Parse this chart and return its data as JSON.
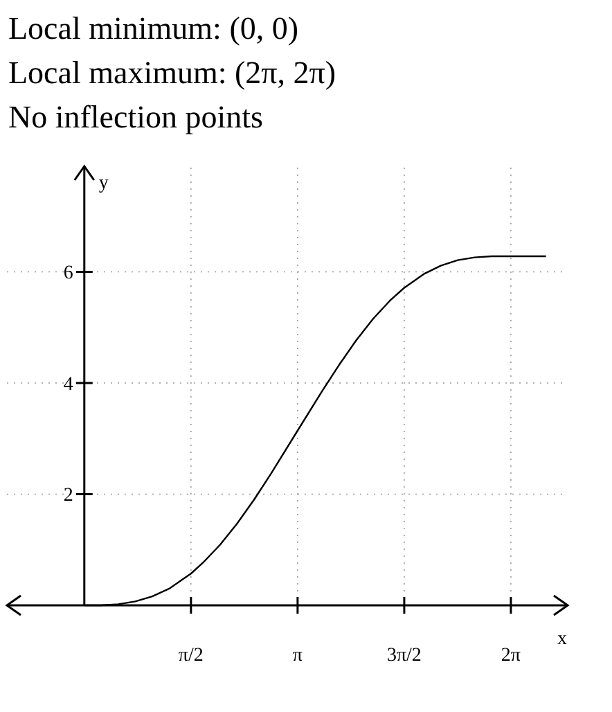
{
  "chart_data": {
    "type": "line",
    "annotations": [
      "Local minimum: (0, 0)",
      "Local maximum: (2π, 2π)",
      "No inflection points"
    ],
    "xlabel": "x",
    "ylabel": "y",
    "x": [
      0,
      0.25,
      0.5,
      0.75,
      1,
      1.25,
      1.57,
      1.75,
      2,
      2.25,
      2.5,
      2.75,
      3.14,
      3.5,
      3.75,
      4,
      4.25,
      4.5,
      4.71,
      5,
      5.25,
      5.5,
      5.75,
      6,
      6.28,
      6.8
    ],
    "series": [
      {
        "color": "#000000",
        "values": [
          0,
          0,
          0.02,
          0.07,
          0.16,
          0.3,
          0.57,
          0.77,
          1.09,
          1.47,
          1.9,
          2.37,
          3.14,
          3.85,
          4.32,
          4.76,
          5.15,
          5.48,
          5.71,
          5.96,
          6.11,
          6.21,
          6.26,
          6.28,
          6.28,
          6.28
        ]
      }
    ],
    "xlim": [
      -1.14,
      7.12
    ],
    "ylim": [
      0,
      7.9
    ],
    "xticks": [
      {
        "value": 1.5708,
        "label": "π/2"
      },
      {
        "value": 3.1416,
        "label": "π"
      },
      {
        "value": 4.7124,
        "label": "3π/2"
      },
      {
        "value": 6.2832,
        "label": "2π"
      }
    ],
    "yticks": [
      2,
      4,
      6
    ],
    "grid": true,
    "marker": "none",
    "line_style": "solid"
  }
}
